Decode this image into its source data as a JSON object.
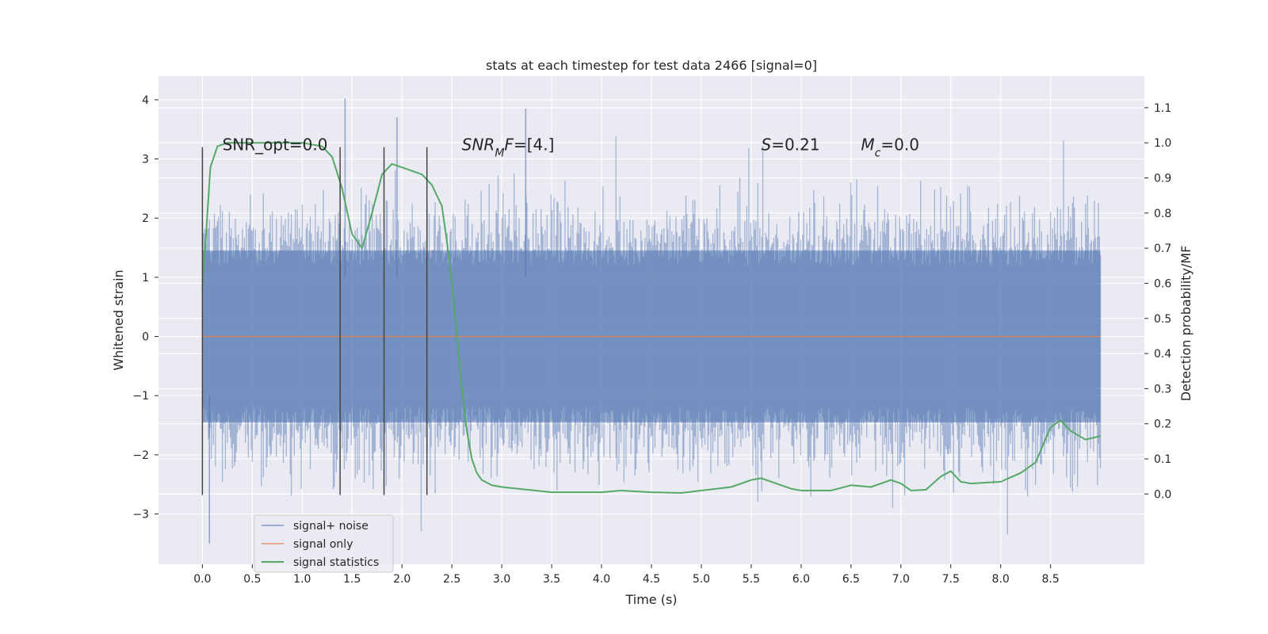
{
  "chart_data": {
    "type": "line",
    "title": "stats at each timestep for test data 2466 [signal=0]",
    "xlabel": "Time (s)",
    "ylabel_left": "Whitened strain",
    "ylabel_right": "Detection probability/MF",
    "xlim": [
      -0.44,
      9.44
    ],
    "ylim_left": [
      -3.85,
      4.4
    ],
    "ylim_right": [
      -0.2,
      1.19
    ],
    "x_ticks": [
      0.0,
      0.5,
      1.0,
      1.5,
      2.0,
      2.5,
      3.0,
      3.5,
      4.0,
      4.5,
      5.0,
      5.5,
      6.0,
      6.5,
      7.0,
      7.5,
      8.0,
      8.5
    ],
    "x_tick_labels": [
      "0.0",
      "0.5",
      "1.0",
      "1.5",
      "2.0",
      "2.5",
      "3.0",
      "3.5",
      "4.0",
      "4.5",
      "5.0",
      "5.5",
      "6.0",
      "6.5",
      "7.0",
      "7.5",
      "8.0",
      "8.5"
    ],
    "y_left_ticks": [
      -3,
      -2,
      -1,
      0,
      1,
      2,
      3,
      4
    ],
    "y_left_tick_labels": [
      "−3",
      "−2",
      "−1",
      "0",
      "1",
      "2",
      "3",
      "4"
    ],
    "y_right_ticks": [
      0.0,
      0.1,
      0.2,
      0.3,
      0.4,
      0.5,
      0.6,
      0.7,
      0.8,
      0.9,
      1.0,
      1.1
    ],
    "y_right_tick_labels": [
      "0.0",
      "0.1",
      "0.2",
      "0.3",
      "0.4",
      "0.5",
      "0.6",
      "0.7",
      "0.8",
      "0.9",
      "1.0",
      "1.1"
    ],
    "grid": true,
    "legend_position": "lower-left",
    "legend": [
      "signal+ noise",
      "signal only",
      "signal statistics"
    ],
    "series": [
      {
        "name": "signal+ noise",
        "axis": "left",
        "color": "#4c72b0",
        "style": "noise band, amplitude ~±2.3, extremes up to 4.0 and down to −3.5, x from 0.0 to 9.0"
      },
      {
        "name": "signal only",
        "axis": "left",
        "color": "#dd8452",
        "x": [
          0.0,
          9.0
        ],
        "values": [
          0.0,
          0.0
        ]
      },
      {
        "name": "signal statistics",
        "axis": "right",
        "color": "#55a868",
        "x": [
          0.0,
          0.08,
          0.15,
          0.25,
          0.5,
          0.8,
          1.0,
          1.2,
          1.3,
          1.4,
          1.5,
          1.55,
          1.6,
          1.7,
          1.8,
          1.9,
          2.0,
          2.2,
          2.3,
          2.4,
          2.45,
          2.5,
          2.55,
          2.6,
          2.65,
          2.7,
          2.75,
          2.8,
          2.9,
          3.0,
          3.5,
          4.0,
          4.2,
          4.5,
          4.8,
          5.0,
          5.3,
          5.5,
          5.6,
          5.7,
          5.9,
          6.0,
          6.3,
          6.5,
          6.7,
          6.9,
          7.0,
          7.1,
          7.25,
          7.4,
          7.5,
          7.6,
          7.7,
          8.0,
          8.2,
          8.35,
          8.5,
          8.6,
          8.7,
          8.85,
          9.0
        ],
        "values": [
          0.58,
          0.93,
          0.99,
          1.0,
          1.0,
          1.0,
          1.0,
          0.99,
          0.96,
          0.87,
          0.74,
          0.72,
          0.7,
          0.8,
          0.91,
          0.94,
          0.93,
          0.91,
          0.88,
          0.82,
          0.72,
          0.6,
          0.45,
          0.3,
          0.18,
          0.1,
          0.06,
          0.04,
          0.025,
          0.02,
          0.005,
          0.005,
          0.01,
          0.005,
          0.003,
          0.01,
          0.02,
          0.04,
          0.045,
          0.035,
          0.015,
          0.01,
          0.01,
          0.025,
          0.02,
          0.04,
          0.03,
          0.01,
          0.012,
          0.05,
          0.065,
          0.035,
          0.03,
          0.035,
          0.06,
          0.09,
          0.19,
          0.21,
          0.18,
          0.155,
          0.165
        ]
      }
    ],
    "vertical_lines": {
      "color": "#444444",
      "x": [
        0.0,
        1.38,
        1.82,
        2.25
      ],
      "y_range_left": [
        -2.68,
        3.2
      ]
    },
    "annotations": [
      {
        "text": "SNR_opt=0.0",
        "x": 0.2,
        "y": 3.15
      },
      {
        "text": "SNR_MF=[4.]",
        "x": 2.6,
        "y": 3.15
      },
      {
        "text": "S=0.21",
        "x": 5.6,
        "y": 3.15
      },
      {
        "text": "M_c=0.0",
        "x": 6.6,
        "y": 3.15
      }
    ]
  }
}
